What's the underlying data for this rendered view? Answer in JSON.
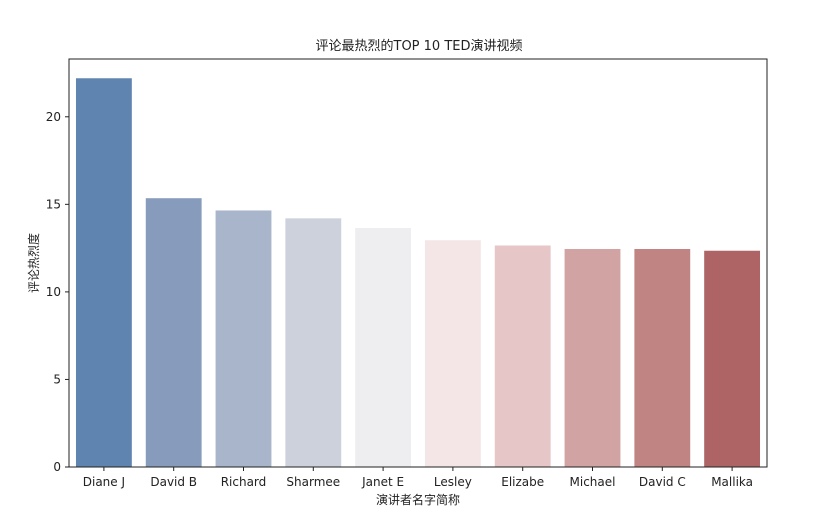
{
  "chart_data": {
    "type": "bar",
    "title": "评论最热烈的TOP 10 TED演讲视频",
    "xlabel": "演讲者名字简称",
    "ylabel": "评论热烈度",
    "categories": [
      "Diane J",
      "David B",
      "Richard",
      "Sharmee",
      "Janet E",
      "Lesley",
      "Elizabe",
      "Michael",
      "David C",
      "Mallika"
    ],
    "values": [
      22.2,
      15.35,
      14.65,
      14.2,
      13.65,
      12.95,
      12.65,
      12.45,
      12.45,
      12.35
    ],
    "ylim": [
      0,
      23.3
    ],
    "yticks": [
      0,
      5,
      10,
      15,
      20
    ],
    "grid": false,
    "colors": [
      "#6084b0",
      "#879cbd",
      "#a8b5ca",
      "#ccd1dc",
      "#eeeef0",
      "#f4e6e6",
      "#e6c6c7",
      "#d1a3a2",
      "#c08583",
      "#ae6465"
    ]
  }
}
